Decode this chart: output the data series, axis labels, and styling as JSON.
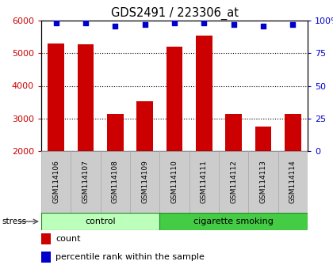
{
  "title": "GDS2491 / 223306_at",
  "samples": [
    "GSM114106",
    "GSM114107",
    "GSM114108",
    "GSM114109",
    "GSM114110",
    "GSM114111",
    "GSM114112",
    "GSM114113",
    "GSM114114"
  ],
  "counts": [
    5300,
    5280,
    3150,
    3520,
    5200,
    5540,
    3150,
    2750,
    3150
  ],
  "percentiles": [
    98,
    98,
    96,
    97,
    98,
    98,
    97,
    96,
    97
  ],
  "groups": [
    {
      "label": "control",
      "start": 0,
      "end": 4,
      "color": "#bbffbb"
    },
    {
      "label": "cigarette smoking",
      "start": 4,
      "end": 9,
      "color": "#44cc44"
    }
  ],
  "stress_label": "stress",
  "ylim_left": [
    2000,
    6000
  ],
  "ylim_right": [
    0,
    100
  ],
  "yticks_left": [
    2000,
    3000,
    4000,
    5000,
    6000
  ],
  "yticks_right": [
    0,
    25,
    50,
    75,
    100
  ],
  "bar_color": "#cc0000",
  "dot_color": "#0000cc",
  "bar_bottom": 2000,
  "legend_count_color": "#cc0000",
  "legend_pct_color": "#0000cc",
  "bar_width": 0.55,
  "label_fontsize": 6.5,
  "title_fontsize": 10.5
}
